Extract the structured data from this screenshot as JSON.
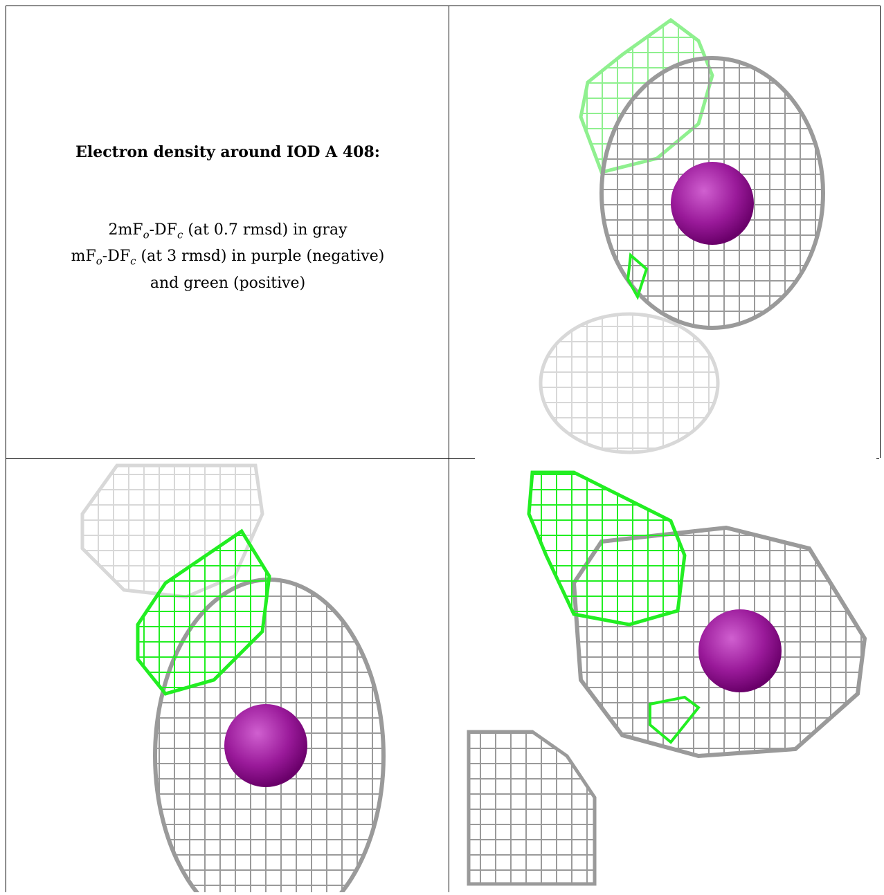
{
  "caption": {
    "title": "Electron density around IOD A 408:",
    "line1": {
      "prefix": "2mF",
      "sub_o": "o",
      "mid": "-DF",
      "sub_c": "c",
      "suffix": " (at 0.7 rmsd) in gray"
    },
    "line2": {
      "prefix": "mF",
      "sub_o": "o",
      "mid": "-DF",
      "sub_c": "c",
      "suffix": " (at 3 rmsd) in purple (negative)"
    },
    "line3": "and green (positive)"
  },
  "colors": {
    "gray_mesh": "#9a9a9a",
    "light_gray_mesh": "#d8d8d8",
    "green_mesh": "#22ee22",
    "light_green_mesh": "#8ff08f",
    "purple_sphere": "#9a1a9a",
    "border": "#000000"
  },
  "views": [
    {
      "name": "top-right",
      "atom": "IOD"
    },
    {
      "name": "bottom-left",
      "atom": "IOD"
    },
    {
      "name": "bottom-right",
      "atom": "IOD"
    }
  ]
}
